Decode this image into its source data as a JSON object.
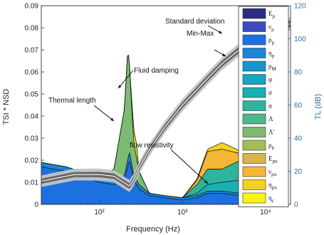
{
  "chart_data": {
    "type": "area",
    "xlabel": "Frequency (Hz)",
    "ylabel": "TSI * NSD",
    "ylabel_right": "TL (dB)",
    "xscale": "log",
    "xlim": [
      20,
      20000
    ],
    "ylim": [
      0,
      0.09
    ],
    "ylim_right": [
      0,
      120
    ],
    "x_ticks": [
      {
        "value": 100,
        "label": "10²"
      },
      {
        "value": 1000,
        "label": "10³"
      },
      {
        "value": 10000,
        "label": "10⁴"
      }
    ],
    "y_ticks": [
      "0",
      "0.01",
      "0.02",
      "0.03",
      "0.04",
      "0.05",
      "0.06",
      "0.07",
      "0.08",
      "0.09"
    ],
    "y_ticks_right": [
      "0",
      "20",
      "40",
      "60",
      "80",
      "100",
      "120"
    ],
    "legend_position": "right",
    "legend": [
      {
        "label": "E",
        "sub": "p",
        "color": "#2b2c82"
      },
      {
        "label": "ν",
        "sub": "p",
        "color": "#3a4cc4"
      },
      {
        "label": "ρ",
        "sub": "p",
        "color": "#1e6fe0"
      },
      {
        "label": "η",
        "sub": "p",
        "color": "#1a86d6"
      },
      {
        "label": "ρ",
        "sub": "M",
        "color": "#1496cf"
      },
      {
        "label": "φ",
        "sub": "",
        "color": "#13a4c6"
      },
      {
        "label": "σ",
        "sub": "",
        "color": "#1aafb3"
      },
      {
        "label": "α",
        "sub": "",
        "color": "#2eb39c"
      },
      {
        "label": "Λ",
        "sub": "",
        "color": "#4db888"
      },
      {
        "label": "Λ'",
        "sub": "",
        "color": "#7cbc72"
      },
      {
        "label": "ρ",
        "sub": "b",
        "color": "#a4bd58"
      },
      {
        "label": "E",
        "sub": "pu",
        "color": "#d8b44a"
      },
      {
        "label": "ν",
        "sub": "pu",
        "color": "#f5b634"
      },
      {
        "label": "η",
        "sub": "pu",
        "color": "#f2d21e"
      },
      {
        "label": "η",
        "sub": "c",
        "color": "#f9f50e"
      }
    ],
    "series": [
      {
        "label": "ρ",
        "sub": "p",
        "color": "#1e6fe0",
        "x": [
          20,
          40,
          70,
          100,
          150,
          200,
          230,
          260,
          300,
          400,
          600,
          1000,
          1500,
          2000,
          3000,
          5000,
          7000,
          10000,
          13000,
          15000,
          20000
        ],
        "values": [
          0.017,
          0.015,
          0.012,
          0.01,
          0.009,
          0.011,
          0.02,
          0.011,
          0.007,
          0.004,
          0.003,
          0.002,
          0.003,
          0.005,
          0.005,
          0.004,
          0.004,
          0.004,
          0.0,
          0.0,
          0.0
        ]
      },
      {
        "label": "η",
        "sub": "p",
        "color": "#1a86d6",
        "x": [
          20,
          200,
          230,
          260,
          300,
          400,
          1000,
          2000,
          3000,
          5000,
          7000,
          10000,
          13000,
          15000,
          20000
        ],
        "values": [
          0.002,
          0.002,
          0.004,
          0.002,
          0.002,
          0.001,
          0.001,
          0.001,
          0.001,
          0.001,
          0.001,
          0.001,
          0.0,
          0.0,
          0.0
        ]
      },
      {
        "label": "σ",
        "sub": "",
        "color": "#1aafb3",
        "x": [
          20,
          1000,
          1500,
          2000,
          3000,
          5000,
          7000,
          8000,
          10000,
          13000,
          15000,
          20000
        ],
        "values": [
          0.0,
          0.0,
          0.001,
          0.003,
          0.004,
          0.006,
          0.012,
          0.01,
          0.008,
          0.0,
          0.0,
          0.0
        ]
      },
      {
        "label": "α",
        "sub": "",
        "color": "#2eb39c",
        "x": [
          20,
          1000,
          1500,
          2000,
          3000,
          5000,
          7000,
          8000,
          10000,
          13000,
          15000,
          20000
        ],
        "values": [
          0.0,
          0.0,
          0.004,
          0.007,
          0.006,
          0.009,
          0.018,
          0.013,
          0.008,
          0.0,
          0.0,
          0.0
        ]
      },
      {
        "label": "Λ'",
        "sub": "",
        "color": "#7cbc72",
        "x": [
          20,
          100,
          150,
          200,
          220,
          230,
          240,
          260,
          300,
          400,
          1000,
          20000
        ],
        "values": [
          0.0,
          0.0,
          0.005,
          0.03,
          0.05,
          0.04,
          0.03,
          0.015,
          0.006,
          0.0,
          0.0,
          0.0
        ]
      },
      {
        "label": "E",
        "sub": "pu",
        "color": "#f5b634",
        "x": [
          20,
          1000,
          1500,
          2000,
          3000,
          5000,
          7000,
          10000,
          13000,
          15000,
          20000
        ],
        "values": [
          0.0,
          0.0,
          0.002,
          0.008,
          0.009,
          0.003,
          0.0,
          0.003,
          0.0,
          0.0,
          0.0
        ]
      },
      {
        "label": "η",
        "sub": "c",
        "color": "#f9f50e",
        "x": [
          20,
          230,
          250,
          270,
          280,
          300,
          400,
          20000
        ],
        "values": [
          0.0,
          0.0,
          0.004,
          0.006,
          0.006,
          0.0,
          0.0,
          0.0
        ]
      },
      {
        "label": "ν",
        "sub": "pu",
        "color": "#f2d21e",
        "x": [
          20,
          1000,
          2000,
          3000,
          4000,
          5000,
          7000,
          8000,
          10000,
          12000,
          13000,
          20000
        ],
        "values": [
          0.0,
          0.0,
          0.001,
          0.003,
          0.002,
          0.001,
          0.0,
          0.0,
          0.002,
          0.004,
          0.0,
          0.0
        ]
      }
    ],
    "tl_curve": {
      "axis": "right",
      "x": [
        20,
        50,
        100,
        150,
        200,
        230,
        260,
        300,
        400,
        600,
        1000,
        2000,
        3000,
        5000,
        7000,
        10000,
        12000,
        15000,
        20000
      ],
      "values": [
        14,
        18,
        18,
        17,
        13,
        11,
        15,
        22,
        33,
        46,
        60,
        76,
        85,
        94,
        100,
        106,
        106,
        108,
        109
      ],
      "band_min_max": [
        3.5,
        4.0
      ],
      "band_std": [
        1.5,
        2.0
      ]
    },
    "annotations": [
      {
        "text": "Standard deviation",
        "target": "std band near 10⁴ Hz"
      },
      {
        "text": "Min-Max",
        "target": "min-max band near 1.5·10⁴ Hz"
      },
      {
        "text": "Fluid damping",
        "target": "yellow peak at ~270 Hz"
      },
      {
        "text": "Thermal length",
        "target": "green peak at ~220 Hz"
      },
      {
        "text": "flow resistivity",
        "target": "σ peak at ~7·10³ Hz"
      }
    ]
  }
}
